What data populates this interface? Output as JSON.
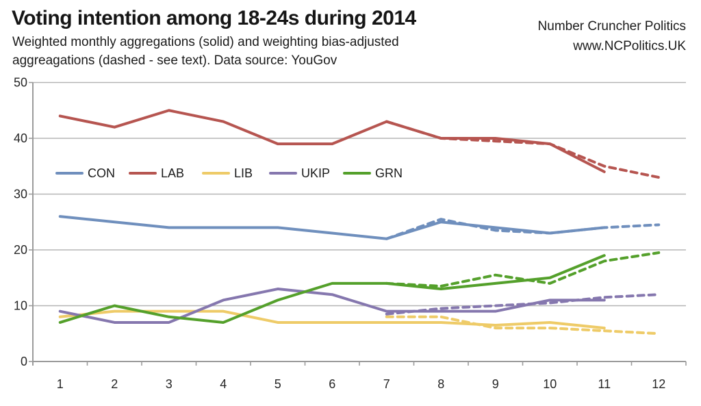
{
  "header": {
    "title": "Voting intention among 18-24s during 2014",
    "subtitle_line1": "Weighted monthly aggregations (solid) and weighting bias-adjusted",
    "subtitle_line2": "aggreagations (dashed - see text). Data source: YouGov",
    "source_name": "Number Cruncher Politics",
    "source_url": "www.NCPolitics.UK"
  },
  "chart_data": {
    "type": "line",
    "title": "Voting intention among 18-24s during 2014",
    "x_categories": [
      1,
      2,
      3,
      4,
      5,
      6,
      7,
      8,
      9,
      10,
      11,
      12
    ],
    "y_ticks": [
      0,
      10,
      20,
      30,
      40,
      50
    ],
    "ylim": [
      0,
      50
    ],
    "grid": true,
    "legend_position": "inside-plot-upper-left-row",
    "legend": [
      "CON",
      "LAB",
      "LIB",
      "UKIP",
      "GRN"
    ],
    "series": [
      {
        "name": "CON",
        "color": "#6f8fbd",
        "solid": [
          26,
          25,
          24,
          24,
          24,
          23,
          22,
          25,
          24,
          23,
          24,
          null
        ],
        "dashed": [
          null,
          null,
          null,
          null,
          null,
          null,
          22,
          25.5,
          23.5,
          23,
          24,
          24.5
        ]
      },
      {
        "name": "LAB",
        "color": "#b65550",
        "solid": [
          44,
          42,
          45,
          43,
          39,
          39,
          43,
          40,
          40,
          39,
          34,
          null
        ],
        "dashed": [
          null,
          null,
          null,
          null,
          null,
          null,
          43,
          40,
          39.5,
          39,
          35,
          33
        ]
      },
      {
        "name": "LIB",
        "color": "#eecb68",
        "solid": [
          8,
          9,
          9,
          9,
          7,
          7,
          7,
          7,
          6.5,
          7,
          6,
          null
        ],
        "dashed": [
          null,
          null,
          null,
          null,
          null,
          null,
          8,
          8,
          6,
          6,
          5.5,
          5
        ]
      },
      {
        "name": "UKIP",
        "color": "#8577ae",
        "solid": [
          9,
          7,
          7,
          11,
          13,
          12,
          9,
          9,
          9,
          11,
          11,
          null
        ],
        "dashed": [
          null,
          null,
          null,
          null,
          null,
          null,
          8.5,
          9.5,
          10,
          10.5,
          11.5,
          12
        ]
      },
      {
        "name": "GRN",
        "color": "#54a02b",
        "solid": [
          7,
          10,
          8,
          7,
          11,
          14,
          14,
          13,
          14,
          15,
          19,
          null
        ],
        "dashed": [
          null,
          null,
          null,
          null,
          null,
          null,
          14,
          13.5,
          15.5,
          14,
          18,
          19.5
        ]
      }
    ]
  }
}
